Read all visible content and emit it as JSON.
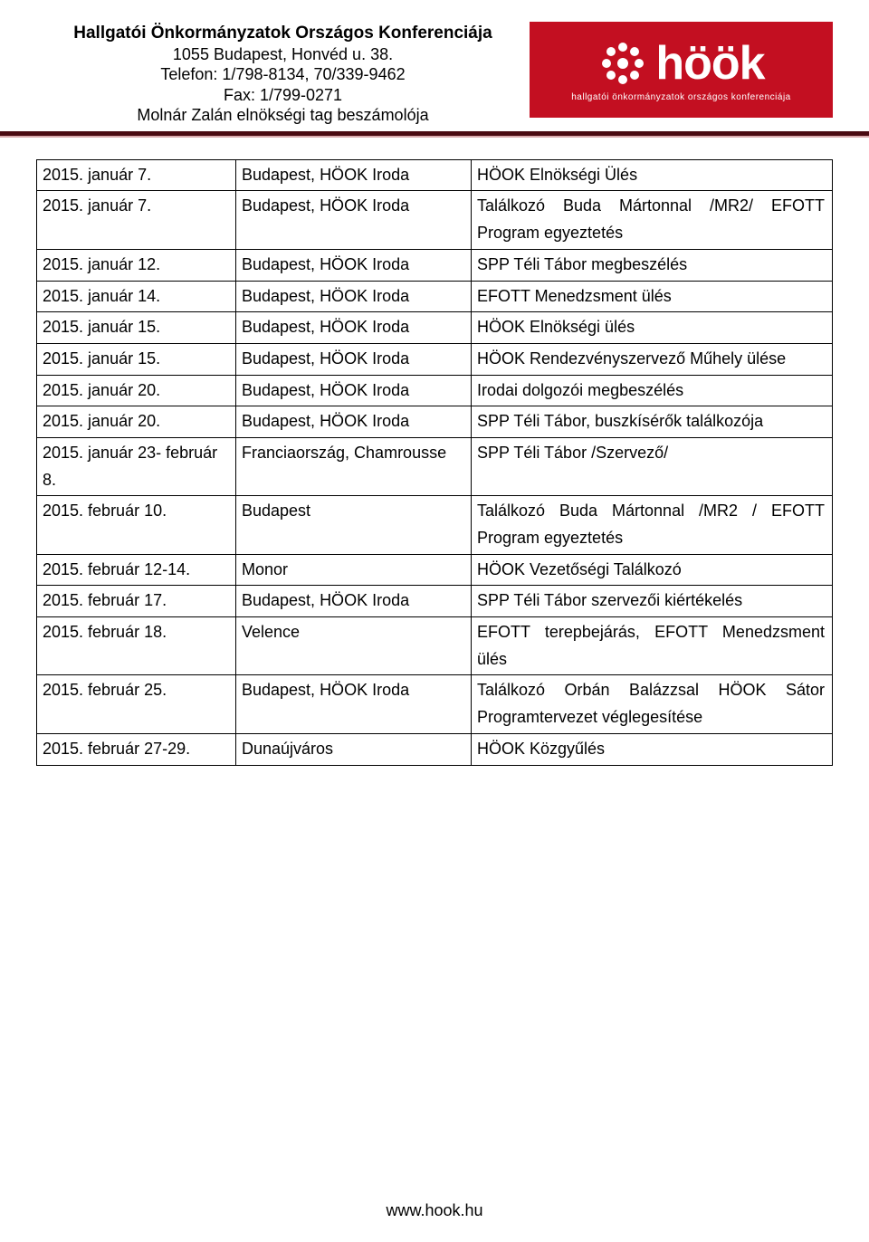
{
  "header": {
    "org_title": "Hallgatói Önkormányzatok Országos Konferenciája",
    "address": "1055 Budapest, Honvéd u. 38.",
    "phone": "Telefon: 1/798-8134, 70/339-9462",
    "fax": "Fax: 1/799-0271",
    "subtitle": "Molnár Zalán elnökségi tag beszámolója"
  },
  "logo": {
    "text": "höök",
    "sub": "hallgatói önkormányzatok országos konferenciája",
    "bg_color": "#c30f21",
    "fg_color": "#ffffff"
  },
  "rows": [
    {
      "date": "2015. január 7.",
      "place": "Budapest, HÖOK Iroda",
      "desc": "HÖOK Elnökségi Ülés"
    },
    {
      "date": "2015. január 7.",
      "place": "Budapest, HÖOK Iroda",
      "desc": "Találkozó Buda Mártonnal /MR2/ EFOTT Program egyeztetés"
    },
    {
      "date": "2015. január 12.",
      "place": "Budapest, HÖOK Iroda",
      "desc": "SPP Téli Tábor megbeszélés"
    },
    {
      "date": "2015. január 14.",
      "place": "Budapest, HÖOK Iroda",
      "desc": "EFOTT Menedzsment ülés"
    },
    {
      "date": "2015. január 15.",
      "place": "Budapest, HÖOK Iroda",
      "desc": "HÖOK Elnökségi ülés"
    },
    {
      "date": "2015. január 15.",
      "place": "Budapest, HÖOK Iroda",
      "desc": "HÖOK Rendezvényszervező Műhely ülése"
    },
    {
      "date": "2015. január 20.",
      "place": "Budapest, HÖOK Iroda",
      "desc": "Irodai dolgozói megbeszélés"
    },
    {
      "date": "2015. január 20.",
      "place": "Budapest, HÖOK Iroda",
      "desc": "SPP Téli Tábor, buszkísérők találkozója"
    },
    {
      "date": "2015. január 23- február 8.",
      "place": "Franciaország, Chamrousse",
      "desc": "SPP Téli Tábor /Szervező/"
    },
    {
      "date": "2015. február 10.",
      "place": "Budapest",
      "desc": "Találkozó Buda Mártonnal /MR2 / EFOTT Program egyeztetés"
    },
    {
      "date": "2015. február 12-14.",
      "place": "Monor",
      "desc": "HÖOK Vezetőségi Találkozó"
    },
    {
      "date": "2015. február 17.",
      "place": "Budapest, HÖOK Iroda",
      "desc": "SPP Téli Tábor szervezői kiértékelés"
    },
    {
      "date": "2015. február 18.",
      "place": "Velence",
      "desc": "EFOTT terepbejárás, EFOTT Menedzsment ülés"
    },
    {
      "date": "2015. február 25.",
      "place": "Budapest, HÖOK Iroda",
      "desc": "Találkozó Orbán Balázzsal HÖOK Sátor Programtervezet véglegesítése"
    },
    {
      "date": "2015. február 27-29.",
      "place": "Dunaújváros",
      "desc": "HÖOK Közgyűlés"
    }
  ],
  "footer": "www.hook.hu",
  "colors": {
    "rule_dark": "#4a0b12",
    "rule_light": "#d9a9ac",
    "text": "#000000",
    "bg": "#ffffff"
  }
}
